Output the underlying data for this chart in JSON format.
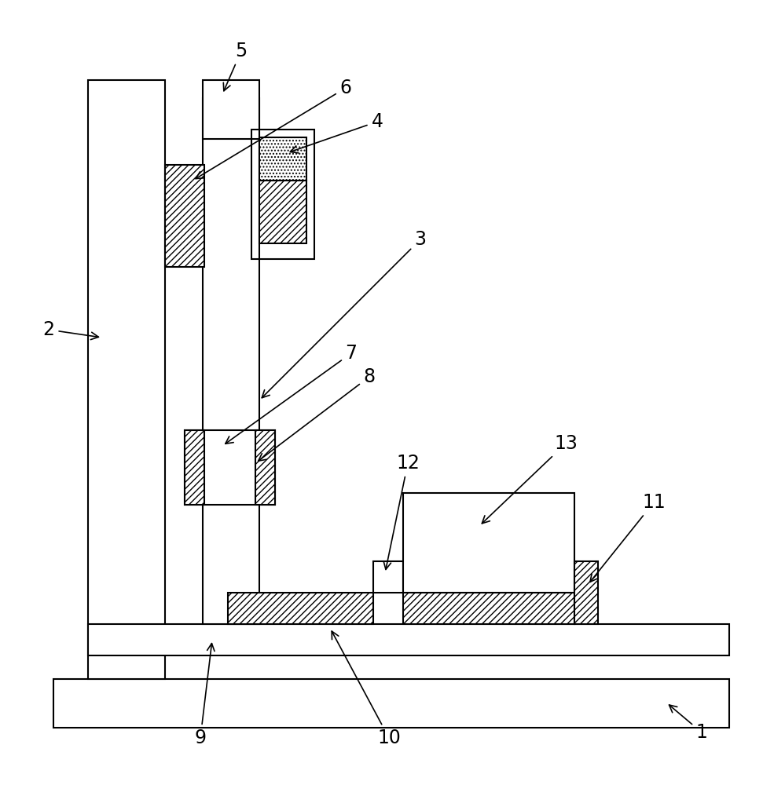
{
  "bg_color": "#ffffff",
  "line_color": "#000000",
  "hatch_diag": "////",
  "hatch_dot": "....",
  "lw": 1.5,
  "fig_width": 9.85,
  "fig_height": 10.0
}
